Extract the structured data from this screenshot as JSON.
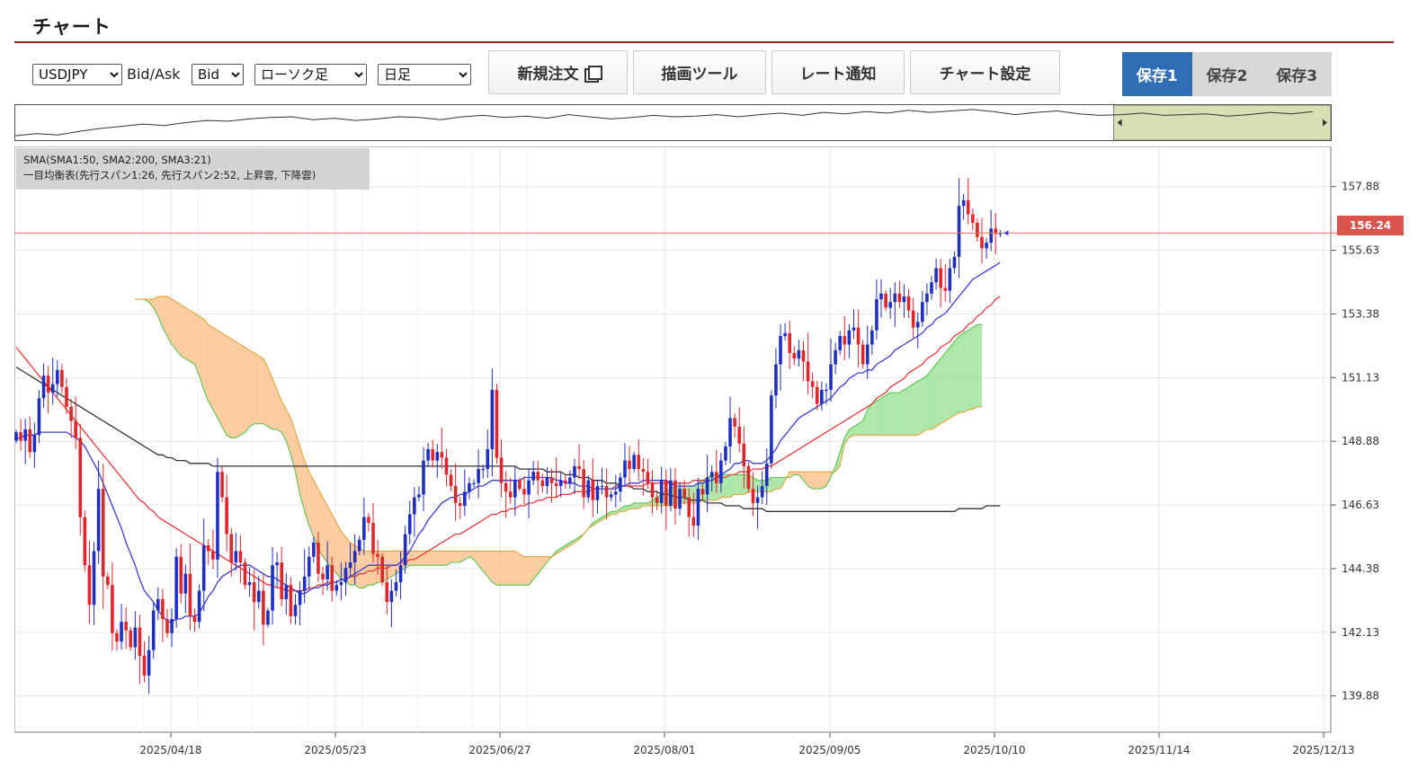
{
  "panel": {
    "title": "チャート"
  },
  "toolbar": {
    "symbol": {
      "value": "USDJPY",
      "options": [
        "USDJPY"
      ]
    },
    "bidask_label": "Bid/Ask",
    "bidask": {
      "value": "Bid",
      "options": [
        "Bid"
      ]
    },
    "chart_type": {
      "value": "ローソク足",
      "options": [
        "ローソク足"
      ]
    },
    "timeframe": {
      "value": "日足",
      "options": [
        "日足"
      ]
    },
    "buttons": {
      "new_order": "新規注文",
      "draw_tools": "描画ツール",
      "rate_alert": "レート通知",
      "chart_settings": "チャート設定"
    },
    "save_tabs": [
      "保存1",
      "保存2",
      "保存3"
    ],
    "save_active": 0
  },
  "legend": {
    "line1": "SMA(SMA1:50, SMA2:200, SMA3:21)",
    "line2": "一目均衡表(先行スパン1:26, 先行スパン2:52, 上昇雲, 下降雲)"
  },
  "current_price": "156.24",
  "colors": {
    "up": "#1f2fbf",
    "down": "#e0262a",
    "sma_short": "#3b3bd6",
    "sma_mid": "#e8383c",
    "sma_long": "#333333",
    "cloud_up": "#9fe39a",
    "cloud_down": "#f9c38f",
    "span1": "#5cc34f",
    "span2": "#e9a23a",
    "accent": "#9b2020",
    "save_active": "#2f6db5"
  },
  "chart_data": {
    "type": "candlestick",
    "symbol": "USDJPY",
    "timeframe": "日足",
    "y_ticks": [
      "157.88",
      "155.63",
      "153.38",
      "151.13",
      "148.88",
      "146.63",
      "144.38",
      "142.13",
      "139.88"
    ],
    "x_ticks": [
      "2025/04/18",
      "2025/05/23",
      "2025/06/27",
      "2025/08/01",
      "2025/09/05",
      "2025/10/10",
      "2025/11/14",
      "2025/12/13"
    ],
    "ylim": [
      138.6,
      159.3
    ],
    "current_price": 156.24,
    "closes": [
      149.2,
      148.9,
      149.3,
      148.5,
      149.1,
      150.4,
      151.2,
      150.6,
      150.9,
      151.4,
      150.8,
      150.1,
      149.6,
      149.0,
      146.2,
      144.5,
      143.1,
      145.0,
      147.2,
      144.1,
      143.8,
      142.1,
      141.8,
      142.5,
      142.2,
      141.6,
      142.3,
      141.3,
      140.6,
      141.5,
      142.9,
      143.3,
      142.6,
      142.1,
      142.6,
      144.8,
      143.5,
      144.2,
      142.7,
      142.5,
      143.6,
      145.2,
      145.0,
      144.7,
      147.8,
      146.9,
      145.6,
      144.6,
      145.0,
      144.6,
      143.8,
      143.9,
      143.2,
      143.6,
      142.4,
      142.9,
      144.5,
      144.6,
      143.3,
      143.8,
      142.7,
      143.1,
      143.6,
      144.1,
      144.8,
      145.3,
      144.2,
      144.0,
      144.5,
      143.6,
      143.8,
      143.9,
      144.4,
      144.6,
      145.0,
      145.4,
      146.2,
      146.0,
      144.9,
      144.8,
      143.9,
      143.2,
      143.6,
      143.9,
      144.5,
      145.6,
      146.3,
      146.9,
      147.0,
      148.2,
      148.6,
      148.2,
      148.5,
      148.3,
      147.7,
      147.3,
      146.7,
      146.6,
      147.1,
      147.4,
      147.4,
      147.9,
      147.9,
      148.6,
      150.7,
      148.3,
      147.4,
      147.1,
      146.9,
      147.5,
      147.2,
      147.0,
      147.5,
      147.8,
      147.5,
      147.3,
      147.6,
      147.4,
      147.3,
      147.5,
      147.4,
      147.6,
      148.0,
      147.9,
      146.9,
      147.5,
      146.8,
      147.3,
      147.3,
      146.9,
      147.0,
      147.1,
      147.6,
      148.2,
      147.9,
      148.4,
      147.9,
      147.8,
      147.4,
      146.9,
      146.7,
      147.5,
      146.6,
      147.5,
      146.5,
      147.2,
      146.9,
      146.2,
      145.9,
      147.2,
      147.0,
      147.6,
      147.8,
      147.4,
      148.2,
      148.7,
      149.7,
      149.4,
      148.8,
      148.0,
      147.2,
      146.7,
      146.9,
      147.3,
      148.1,
      150.5,
      151.6,
      152.6,
      152.7,
      152.0,
      151.8,
      152.1,
      151.7,
      151.0,
      150.8,
      150.2,
      150.7,
      150.7,
      151.6,
      152.1,
      152.6,
      152.3,
      152.8,
      152.9,
      152.3,
      151.6,
      152.3,
      152.8,
      153.9,
      154.1,
      153.6,
      153.8,
      154.1,
      153.8,
      154.0,
      153.5,
      152.9,
      153.1,
      153.8,
      154.1,
      154.5,
      155.0,
      154.3,
      154.2,
      155.0,
      155.4,
      157.2,
      157.4,
      156.9,
      156.6,
      156.1,
      155.7,
      155.9,
      156.4,
      156.2,
      156.24
    ],
    "sma_short": [
      149.0,
      149.0,
      149.1,
      149.1,
      149.1,
      149.2,
      149.2,
      149.2,
      149.2,
      149.2,
      149.2,
      149.2,
      149.1,
      149.0,
      148.9,
      148.7,
      148.4,
      148.1,
      147.8,
      147.4,
      147.0,
      146.6,
      146.2,
      145.8,
      145.3,
      144.9,
      144.5,
      144.0,
      143.6,
      143.4,
      143.2,
      142.9,
      142.7,
      142.5,
      142.5,
      142.6,
      142.6,
      142.7,
      142.7,
      142.7,
      142.8,
      143.1,
      143.4,
      143.6,
      143.9,
      144.1,
      144.2,
      144.3,
      144.4,
      144.5,
      144.5,
      144.5,
      144.4,
      144.3,
      144.2,
      144.1,
      144.1,
      144.0,
      143.9,
      143.8,
      143.7,
      143.6,
      143.5,
      143.5,
      143.6,
      143.7,
      143.7,
      143.8,
      143.8,
      143.9,
      143.9,
      144.0,
      144.0,
      144.1,
      144.2,
      144.3,
      144.4,
      144.5,
      144.5,
      144.5,
      144.5,
      144.5,
      144.5,
      144.5,
      144.6,
      144.8,
      145.0,
      145.3,
      145.6,
      145.8,
      146.1,
      146.3,
      146.5,
      146.7,
      146.8,
      146.9,
      146.9,
      147.0,
      147.0,
      147.1,
      147.2,
      147.3,
      147.3,
      147.4,
      147.5,
      147.5,
      147.5,
      147.5,
      147.5,
      147.5,
      147.5,
      147.6,
      147.6,
      147.6,
      147.6,
      147.6,
      147.6,
      147.6,
      147.5,
      147.5,
      147.4,
      147.4,
      147.4,
      147.3,
      147.3,
      147.3,
      147.2,
      147.2,
      147.2,
      147.2,
      147.2,
      147.2,
      147.3,
      147.3,
      147.4,
      147.4,
      147.4,
      147.5,
      147.5,
      147.5,
      147.5,
      147.5,
      147.5,
      147.4,
      147.3,
      147.3,
      147.3,
      147.3,
      147.3,
      147.4,
      147.4,
      147.5,
      147.5,
      147.6,
      147.7,
      147.8,
      147.9,
      148.1,
      148.1,
      148.2,
      148.2,
      148.1,
      148.1,
      148.1,
      148.2,
      148.4,
      148.6,
      148.9,
      149.1,
      149.3,
      149.5,
      149.7,
      149.8,
      149.9,
      150.0,
      150.1,
      150.2,
      150.3,
      150.4,
      150.6,
      150.8,
      150.9,
      151.1,
      151.2,
      151.3,
      151.3,
      151.4,
      151.4,
      151.6,
      151.7,
      151.8,
      151.9,
      152.1,
      152.2,
      152.3,
      152.4,
      152.5,
      152.6,
      152.7,
      152.9,
      153.0,
      153.2,
      153.3,
      153.4,
      153.6,
      153.8,
      154.0,
      154.2,
      154.4,
      154.6,
      154.7,
      154.8,
      154.9,
      155.0,
      155.1,
      155.2
    ],
    "sma_mid": [
      152.2,
      152.0,
      151.8,
      151.6,
      151.4,
      151.2,
      151.0,
      150.8,
      150.6,
      150.4,
      150.2,
      150.0,
      149.8,
      149.6,
      149.4,
      149.2,
      149.0,
      148.8,
      148.6,
      148.4,
      148.2,
      148.0,
      147.8,
      147.6,
      147.4,
      147.2,
      147.0,
      146.8,
      146.7,
      146.5,
      146.4,
      146.2,
      146.1,
      146.0,
      145.9,
      145.8,
      145.7,
      145.6,
      145.5,
      145.4,
      145.3,
      145.2,
      145.1,
      145.0,
      144.9,
      144.8,
      144.7,
      144.6,
      144.5,
      144.4,
      144.3,
      144.2,
      144.1,
      144.0,
      143.9,
      143.8,
      143.8,
      143.7,
      143.7,
      143.6,
      143.6,
      143.6,
      143.6,
      143.6,
      143.7,
      143.7,
      143.8,
      143.8,
      143.9,
      143.9,
      143.9,
      144.0,
      144.0,
      144.1,
      144.1,
      144.2,
      144.2,
      144.3,
      144.3,
      144.4,
      144.4,
      144.4,
      144.5,
      144.5,
      144.6,
      144.6,
      144.7,
      144.7,
      144.8,
      144.9,
      145.0,
      145.1,
      145.2,
      145.3,
      145.4,
      145.5,
      145.6,
      145.6,
      145.7,
      145.8,
      145.9,
      146.0,
      146.1,
      146.2,
      146.3,
      146.3,
      146.4,
      146.4,
      146.5,
      146.5,
      146.6,
      146.6,
      146.7,
      146.7,
      146.8,
      146.8,
      146.9,
      146.9,
      146.9,
      147.0,
      147.0,
      147.0,
      147.1,
      147.1,
      147.1,
      147.1,
      147.2,
      147.2,
      147.2,
      147.2,
      147.2,
      147.3,
      147.3,
      147.3,
      147.3,
      147.3,
      147.3,
      147.3,
      147.4,
      147.4,
      147.4,
      147.4,
      147.4,
      147.4,
      147.4,
      147.4,
      147.4,
      147.4,
      147.5,
      147.5,
      147.5,
      147.5,
      147.5,
      147.6,
      147.6,
      147.6,
      147.7,
      147.7,
      147.8,
      147.8,
      147.8,
      147.9,
      147.9,
      147.9,
      148.0,
      148.0,
      148.1,
      148.2,
      148.3,
      148.4,
      148.5,
      148.6,
      148.7,
      148.8,
      148.9,
      149.0,
      149.1,
      149.2,
      149.3,
      149.4,
      149.5,
      149.6,
      149.7,
      149.8,
      149.9,
      150.0,
      150.1,
      150.2,
      150.4,
      150.5,
      150.6,
      150.8,
      150.9,
      151.0,
      151.1,
      151.3,
      151.4,
      151.5,
      151.6,
      151.8,
      151.9,
      152.0,
      152.2,
      152.3,
      152.4,
      152.6,
      152.7,
      152.8,
      153.0,
      153.1,
      153.3,
      153.4,
      153.6,
      153.7,
      153.9,
      154.0
    ],
    "sma_long": [
      151.5,
      151.4,
      151.3,
      151.2,
      151.1,
      151.0,
      150.9,
      150.8,
      150.7,
      150.6,
      150.5,
      150.4,
      150.3,
      150.2,
      150.1,
      150.0,
      149.9,
      149.8,
      149.7,
      149.6,
      149.5,
      149.4,
      149.3,
      149.2,
      149.1,
      149.0,
      148.9,
      148.8,
      148.7,
      148.6,
      148.5,
      148.4,
      148.4,
      148.3,
      148.3,
      148.2,
      148.2,
      148.2,
      148.1,
      148.1,
      148.1,
      148.1,
      148.1,
      148.0,
      148.0,
      148.0,
      148.0,
      148.0,
      148.0,
      148.0,
      148.0,
      148.0,
      148.0,
      148.0,
      148.0,
      148.0,
      148.0,
      148.0,
      148.0,
      148.0,
      148.0,
      148.0,
      148.0,
      148.0,
      148.0,
      148.0,
      148.0,
      148.0,
      148.0,
      148.0,
      148.0,
      148.0,
      148.0,
      148.0,
      148.0,
      148.0,
      148.0,
      148.0,
      148.0,
      148.0,
      148.0,
      148.0,
      148.0,
      148.0,
      148.0,
      148.0,
      148.0,
      148.0,
      148.0,
      148.0,
      148.0,
      148.0,
      148.0,
      148.0,
      148.0,
      148.0,
      148.0,
      148.0,
      148.0,
      148.0,
      148.0,
      148.0,
      148.0,
      148.0,
      148.0,
      148.0,
      148.0,
      148.0,
      148.0,
      148.0,
      147.9,
      147.9,
      147.9,
      147.9,
      147.9,
      147.9,
      147.8,
      147.8,
      147.8,
      147.8,
      147.7,
      147.7,
      147.7,
      147.6,
      147.6,
      147.6,
      147.5,
      147.5,
      147.5,
      147.4,
      147.4,
      147.4,
      147.3,
      147.3,
      147.3,
      147.2,
      147.2,
      147.2,
      147.1,
      147.1,
      147.1,
      147.0,
      147.0,
      147.0,
      146.9,
      146.9,
      146.9,
      146.8,
      146.8,
      146.8,
      146.8,
      146.7,
      146.7,
      146.7,
      146.7,
      146.6,
      146.6,
      146.6,
      146.6,
      146.5,
      146.5,
      146.5,
      146.5,
      146.5,
      146.4,
      146.4,
      146.4,
      146.4,
      146.4,
      146.4,
      146.4,
      146.4,
      146.4,
      146.4,
      146.4,
      146.4,
      146.4,
      146.4,
      146.4,
      146.4,
      146.4,
      146.4,
      146.4,
      146.4,
      146.4,
      146.4,
      146.4,
      146.4,
      146.4,
      146.4,
      146.4,
      146.4,
      146.4,
      146.4,
      146.4,
      146.4,
      146.4,
      146.4,
      146.4,
      146.4,
      146.4,
      146.4,
      146.4,
      146.4,
      146.4,
      146.4,
      146.5,
      146.5,
      146.5,
      146.5,
      146.5,
      146.5,
      146.6,
      146.6,
      146.6,
      146.6
    ],
    "span_a": [
      153.9,
      153.9,
      153.9,
      153.8,
      153.6,
      153.3,
      152.9,
      152.6,
      152.3,
      152.1,
      151.9,
      151.8,
      151.7,
      151.6,
      151.2,
      150.7,
      150.3,
      150.0,
      149.7,
      149.4,
      149.1,
      149.0,
      149.0,
      149.1,
      149.2,
      149.4,
      149.5,
      149.5,
      149.5,
      149.4,
      149.3,
      149.3,
      149.2,
      148.9,
      148.4,
      147.8,
      147.0,
      146.4,
      145.9,
      145.5,
      145.1,
      144.8,
      144.6,
      144.4,
      144.2,
      144.0,
      143.9,
      143.8,
      143.8,
      143.7,
      143.7,
      143.8,
      143.8,
      143.9,
      143.9,
      144.0,
      144.1,
      144.2,
      144.3,
      144.4,
      144.5,
      144.5,
      144.5,
      144.5,
      144.5,
      144.5,
      144.5,
      144.5,
      144.5,
      144.6,
      144.6,
      144.6,
      144.7,
      144.8,
      144.7,
      144.5,
      144.3,
      144.1,
      143.9,
      143.8,
      143.8,
      143.8,
      143.8,
      143.8,
      143.8,
      143.8,
      143.8,
      144.0,
      144.2,
      144.4,
      144.6,
      144.8,
      145.0,
      145.1,
      145.2,
      145.3,
      145.4,
      145.5,
      145.6,
      145.8,
      146.0,
      146.1,
      146.2,
      146.3,
      146.4,
      146.4,
      146.5,
      146.6,
      146.6,
      146.7,
      146.7,
      146.7,
      146.7,
      146.8,
      146.9,
      147.0,
      147.1,
      147.2,
      147.3,
      147.3,
      147.3,
      147.3,
      147.3,
      147.4,
      147.5,
      147.6,
      147.7,
      147.7,
      147.7,
      147.7,
      147.7,
      147.7,
      147.7,
      147.7,
      147.7,
      147.6,
      147.5,
      147.5,
      147.5,
      147.6,
      147.6,
      147.6,
      147.6,
      147.6,
      147.7,
      147.7,
      147.5,
      147.3,
      147.2,
      147.2,
      147.2,
      147.3,
      147.6,
      148.0,
      148.5,
      149.0,
      149.3,
      149.4,
      149.5,
      149.6,
      150.0,
      150.2,
      150.3,
      150.4,
      150.5,
      150.6,
      150.6,
      150.6,
      150.7,
      150.8,
      150.9,
      151.0,
      151.1,
      151.2,
      151.4,
      151.6,
      151.8,
      152.0,
      152.2,
      152.4,
      152.6,
      152.7,
      152.8,
      152.9,
      153.0,
      153.0
    ],
    "span_b": [
      153.9,
      153.9,
      153.9,
      153.9,
      153.9,
      154.0,
      154.0,
      154.0,
      153.9,
      153.8,
      153.7,
      153.6,
      153.5,
      153.4,
      153.3,
      153.2,
      153.0,
      152.9,
      152.8,
      152.7,
      152.6,
      152.5,
      152.4,
      152.3,
      152.2,
      152.1,
      152.0,
      151.9,
      151.8,
      151.5,
      151.1,
      150.7,
      150.3,
      150.0,
      149.7,
      149.2,
      148.7,
      148.2,
      147.8,
      147.5,
      147.2,
      146.9,
      146.6,
      146.3,
      146.0,
      145.7,
      145.5,
      145.3,
      145.2,
      145.1,
      145.0,
      145.0,
      145.0,
      145.0,
      145.0,
      145.0,
      145.0,
      145.0,
      145.0,
      145.0,
      145.0,
      145.0,
      145.0,
      145.0,
      145.0,
      145.0,
      145.0,
      145.0,
      145.0,
      145.0,
      145.0,
      145.0,
      145.0,
      145.0,
      145.0,
      145.0,
      145.0,
      145.0,
      145.0,
      145.0,
      145.0,
      145.0,
      145.0,
      145.0,
      144.9,
      144.8,
      144.8,
      144.8,
      144.8,
      144.8,
      144.8,
      144.8,
      144.9,
      145.0,
      145.1,
      145.2,
      145.3,
      145.4,
      145.6,
      145.8,
      145.9,
      146.0,
      146.1,
      146.2,
      146.3,
      146.3,
      146.4,
      146.4,
      146.5,
      146.5,
      146.5,
      146.6,
      146.6,
      146.6,
      146.6,
      146.6,
      146.6,
      146.6,
      146.6,
      146.7,
      146.7,
      146.7,
      146.7,
      146.7,
      146.8,
      146.8,
      146.8,
      146.8,
      146.9,
      146.9,
      146.9,
      147.0,
      147.0,
      147.0,
      147.1,
      147.1,
      147.1,
      147.1,
      147.1,
      147.1,
      147.2,
      147.2,
      147.5,
      147.8,
      147.8,
      147.8,
      147.8,
      147.8,
      147.8,
      147.8,
      147.8,
      147.8,
      147.8,
      147.8,
      148.0,
      148.8,
      149.0,
      149.1,
      149.1,
      149.1,
      149.1,
      149.1,
      149.1,
      149.1,
      149.1,
      149.1,
      149.1,
      149.1,
      149.1,
      149.1,
      149.1,
      149.1,
      149.2,
      149.3,
      149.3,
      149.4,
      149.5,
      149.6,
      149.7,
      149.8,
      149.9,
      149.9,
      150.0,
      150.0,
      150.1,
      150.1
    ],
    "navigator_closes": [
      146.0,
      146.3,
      146.1,
      146.6,
      147.0,
      147.3,
      147.6,
      147.4,
      147.8,
      148.1,
      148.0,
      148.3,
      148.5,
      148.6,
      148.2,
      148.4,
      148.1,
      148.3,
      148.6,
      148.5,
      148.2,
      148.6,
      148.8,
      148.5,
      148.7,
      148.4,
      148.9,
      148.6,
      148.3,
      148.5,
      148.8,
      148.6,
      148.7,
      148.9,
      148.6,
      148.9,
      149.1,
      148.8,
      149.2,
      149.0,
      149.3,
      149.1,
      149.5,
      149.2,
      149.4,
      149.6,
      149.3,
      148.9,
      149.2,
      149.4,
      149.0,
      148.8,
      148.9,
      149.1,
      148.8,
      148.9,
      149.0,
      148.7,
      148.9,
      149.2,
      149.0,
      149.3
    ],
    "navigator_selection": [
      0.835,
      1.0
    ]
  }
}
